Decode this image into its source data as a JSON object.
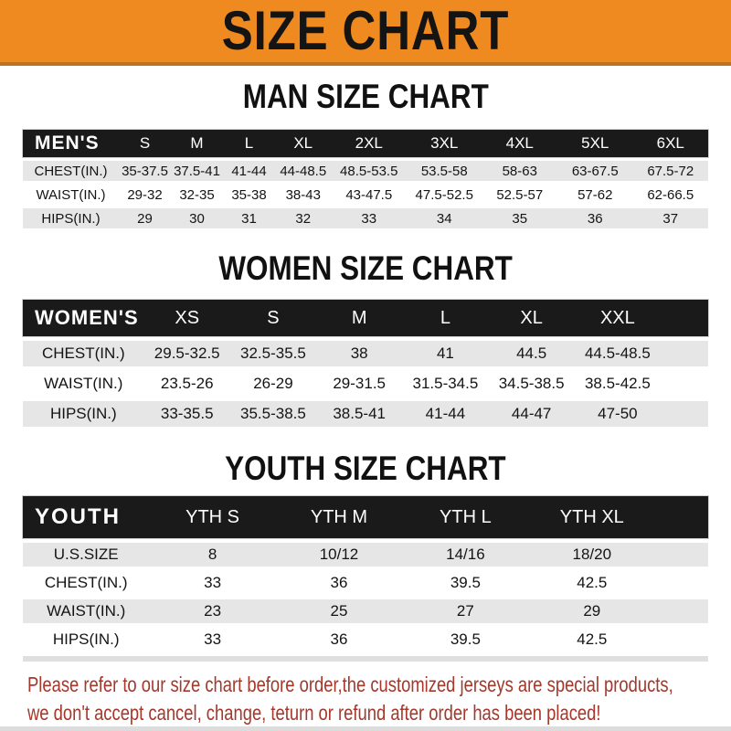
{
  "banner": {
    "title": "SIZE CHART"
  },
  "colors": {
    "banner_bg": "#ee8a1f",
    "banner_border": "#bd731d",
    "header_bg": "#1a1a1a",
    "header_text": "#ffffff",
    "row_alt_bg": "#e6e6e6",
    "footer_text": "#a5372b"
  },
  "sections": [
    {
      "heading": "MAN SIZE CHART",
      "corner": "MEN'S",
      "columns": [
        "S",
        "M",
        "L",
        "XL",
        "2XL",
        "3XL",
        "4XL",
        "5XL",
        "6XL"
      ],
      "rows": [
        {
          "label": "CHEST(IN.)",
          "values": [
            "35-37.5",
            "37.5-41",
            "41-44",
            "44-48.5",
            "48.5-53.5",
            "53.5-58",
            "58-63",
            "63-67.5",
            "67.5-72"
          ]
        },
        {
          "label": "WAIST(IN.)",
          "values": [
            "29-32",
            "32-35",
            "35-38",
            "38-43",
            "43-47.5",
            "47.5-52.5",
            "52.5-57",
            "57-62",
            "62-66.5"
          ]
        },
        {
          "label": "HIPS(IN.)",
          "values": [
            "29",
            "30",
            "31",
            "32",
            "33",
            "34",
            "35",
            "36",
            "37"
          ]
        }
      ]
    },
    {
      "heading": "WOMEN SIZE CHART",
      "corner": "WOMEN'S",
      "columns": [
        "XS",
        "S",
        "M",
        "L",
        "XL",
        "XXL"
      ],
      "rows": [
        {
          "label": "CHEST(IN.)",
          "values": [
            "29.5-32.5",
            "32.5-35.5",
            "38",
            "41",
            "44.5",
            "44.5-48.5"
          ]
        },
        {
          "label": "WAIST(IN.)",
          "values": [
            "23.5-26",
            "26-29",
            "29-31.5",
            "31.5-34.5",
            "34.5-38.5",
            "38.5-42.5"
          ]
        },
        {
          "label": "HIPS(IN.)",
          "values": [
            "33-35.5",
            "35.5-38.5",
            "38.5-41",
            "41-44",
            "44-47",
            "47-50"
          ]
        }
      ]
    },
    {
      "heading": "YOUTH SIZE CHART",
      "corner": "YOUTH",
      "columns": [
        "YTH S",
        "YTH M",
        "YTH L",
        "YTH XL"
      ],
      "rows": [
        {
          "label": "U.S.SIZE",
          "values": [
            "8",
            "10/12",
            "14/16",
            "18/20"
          ]
        },
        {
          "label": "CHEST(IN.)",
          "values": [
            "33",
            "36",
            "39.5",
            "42.5"
          ]
        },
        {
          "label": "WAIST(IN.)",
          "values": [
            "23",
            "25",
            "27",
            "29"
          ]
        },
        {
          "label": "HIPS(IN.)",
          "values": [
            "33",
            "36",
            "39.5",
            "42.5"
          ]
        }
      ]
    }
  ],
  "footer": {
    "line1": "Please refer to our size chart before order,the customized jerseys are special products,",
    "line2": "we don't accept cancel, change, teturn or refund after order has been placed!"
  }
}
